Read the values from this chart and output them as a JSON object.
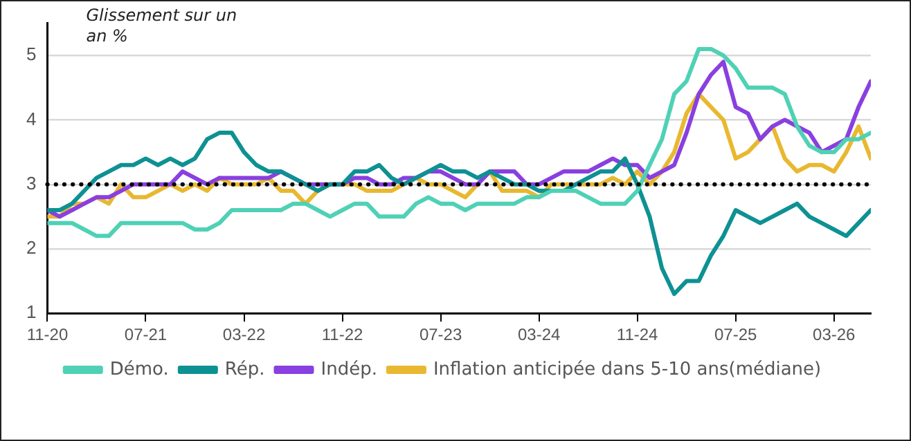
{
  "chart_data": {
    "type": "line",
    "ylabel": "Glissement sur un an %",
    "x": [
      "2020-11",
      "2020-12",
      "2021-01",
      "2021-02",
      "2021-03",
      "2021-04",
      "2021-05",
      "2021-06",
      "2021-07",
      "2021-08",
      "2021-09",
      "2021-10",
      "2021-11",
      "2021-12",
      "2022-01",
      "2022-02",
      "2022-03",
      "2022-04",
      "2022-05",
      "2022-06",
      "2022-07",
      "2022-08",
      "2022-09",
      "2022-10",
      "2022-11",
      "2022-12",
      "2023-01",
      "2023-02",
      "2023-03",
      "2023-04",
      "2023-05",
      "2023-06",
      "2023-07",
      "2023-08",
      "2023-09",
      "2023-10",
      "2023-11",
      "2023-12",
      "2024-01",
      "2024-02",
      "2024-03",
      "2024-04",
      "2024-05",
      "2024-06",
      "2024-07",
      "2024-08",
      "2024-09",
      "2024-10",
      "2024-11",
      "2024-12",
      "2025-01",
      "2025-02",
      "2025-03",
      "2025-04",
      "2025-05",
      "2025-06",
      "2025-07",
      "2025-08",
      "2025-09",
      "2025-10",
      "2025-11",
      "2025-12",
      "2026-01",
      "2026-02",
      "2026-03",
      "2026-04",
      "2026-05",
      "2026-06"
    ],
    "series": [
      {
        "name": "Démo.",
        "color": "#4fd1b5",
        "values": [
          2.4,
          2.4,
          2.4,
          2.3,
          2.2,
          2.2,
          2.4,
          2.4,
          2.4,
          2.4,
          2.4,
          2.4,
          2.3,
          2.3,
          2.4,
          2.6,
          2.6,
          2.6,
          2.6,
          2.6,
          2.7,
          2.7,
          2.6,
          2.5,
          2.6,
          2.7,
          2.7,
          2.5,
          2.5,
          2.5,
          2.7,
          2.8,
          2.7,
          2.7,
          2.6,
          2.7,
          2.7,
          2.7,
          2.7,
          2.8,
          2.8,
          2.9,
          2.9,
          2.9,
          2.8,
          2.7,
          2.7,
          2.7,
          2.9,
          3.3,
          3.7,
          4.4,
          4.6,
          5.1,
          5.1,
          5.0,
          4.8,
          4.5,
          4.5,
          4.5,
          4.4,
          3.9,
          3.6,
          3.5,
          3.5,
          3.7,
          3.7,
          3.8
        ]
      },
      {
        "name": "Rép.",
        "color": "#0e9193",
        "values": [
          2.6,
          2.6,
          2.7,
          2.9,
          3.1,
          3.2,
          3.3,
          3.3,
          3.4,
          3.3,
          3.4,
          3.3,
          3.4,
          3.7,
          3.8,
          3.8,
          3.5,
          3.3,
          3.2,
          3.2,
          3.1,
          3.0,
          2.9,
          3.0,
          3.0,
          3.2,
          3.2,
          3.3,
          3.1,
          3.0,
          3.1,
          3.2,
          3.3,
          3.2,
          3.2,
          3.1,
          3.2,
          3.1,
          3.0,
          3.0,
          2.9,
          2.9,
          2.9,
          3.0,
          3.1,
          3.2,
          3.2,
          3.4,
          3.0,
          2.5,
          1.7,
          1.3,
          1.5,
          1.5,
          1.9,
          2.2,
          2.6,
          2.5,
          2.4,
          2.5,
          2.6,
          2.7,
          2.5,
          2.4,
          2.3,
          2.2,
          2.4,
          2.6
        ]
      },
      {
        "name": "Indép.",
        "color": "#8a3fe0",
        "values": [
          2.6,
          2.5,
          2.6,
          2.7,
          2.8,
          2.8,
          2.9,
          3.0,
          3.0,
          3.0,
          3.0,
          3.2,
          3.1,
          3.0,
          3.1,
          3.1,
          3.1,
          3.1,
          3.1,
          3.2,
          3.1,
          3.0,
          3.0,
          3.0,
          3.0,
          3.1,
          3.1,
          3.0,
          3.0,
          3.1,
          3.1,
          3.2,
          3.2,
          3.1,
          3.0,
          3.0,
          3.2,
          3.2,
          3.2,
          3.0,
          3.0,
          3.1,
          3.2,
          3.2,
          3.2,
          3.3,
          3.4,
          3.3,
          3.3,
          3.1,
          3.2,
          3.3,
          3.8,
          4.4,
          4.7,
          4.9,
          4.2,
          4.1,
          3.7,
          3.9,
          4.0,
          3.9,
          3.8,
          3.5,
          3.6,
          3.7,
          4.2,
          4.6
        ]
      },
      {
        "name": "Inflation anticipée dans 5-10 ans(médiane)",
        "color": "#e8b830",
        "values": [
          2.5,
          2.5,
          2.7,
          2.7,
          2.8,
          2.7,
          3.0,
          2.8,
          2.8,
          2.9,
          3.0,
          2.9,
          3.0,
          2.9,
          3.1,
          3.0,
          3.0,
          3.0,
          3.1,
          2.9,
          2.9,
          2.7,
          2.9,
          3.0,
          3.0,
          3.0,
          2.9,
          2.9,
          2.9,
          3.0,
          3.1,
          3.0,
          3.0,
          2.9,
          2.8,
          3.0,
          3.2,
          2.9,
          2.9,
          2.9,
          2.8,
          3.0,
          3.0,
          3.0,
          3.0,
          3.0,
          3.1,
          3.0,
          3.2,
          3.0,
          3.2,
          3.5,
          4.1,
          4.4,
          4.2,
          4.0,
          3.4,
          3.5,
          3.7,
          3.9,
          3.4,
          3.2,
          3.3,
          3.3,
          3.2,
          3.5,
          3.9,
          3.4
        ]
      }
    ],
    "xlim": [
      "2020-11",
      "2026-06"
    ],
    "xticks": [
      {
        "value": "2020-11",
        "label": "11-20"
      },
      {
        "value": "2021-07",
        "label": "07-21"
      },
      {
        "value": "2022-03",
        "label": "03-22"
      },
      {
        "value": "2022-11",
        "label": "11-22"
      },
      {
        "value": "2023-07",
        "label": "07-23"
      },
      {
        "value": "2024-03",
        "label": "03-24"
      },
      {
        "value": "2024-11",
        "label": "11-24"
      },
      {
        "value": "2025-07",
        "label": "07-25"
      },
      {
        "value": "2026-03",
        "label": "03-26"
      }
    ],
    "ylim": [
      1,
      5.5
    ],
    "yticks": [
      1,
      2,
      3,
      4,
      5
    ],
    "ref_lines": [
      {
        "axis": "y",
        "value": 3,
        "color": "#000000",
        "line_style": "dotted"
      }
    ],
    "grid": "y",
    "legend": "bottom",
    "marker": "none",
    "line_style": "solid"
  }
}
